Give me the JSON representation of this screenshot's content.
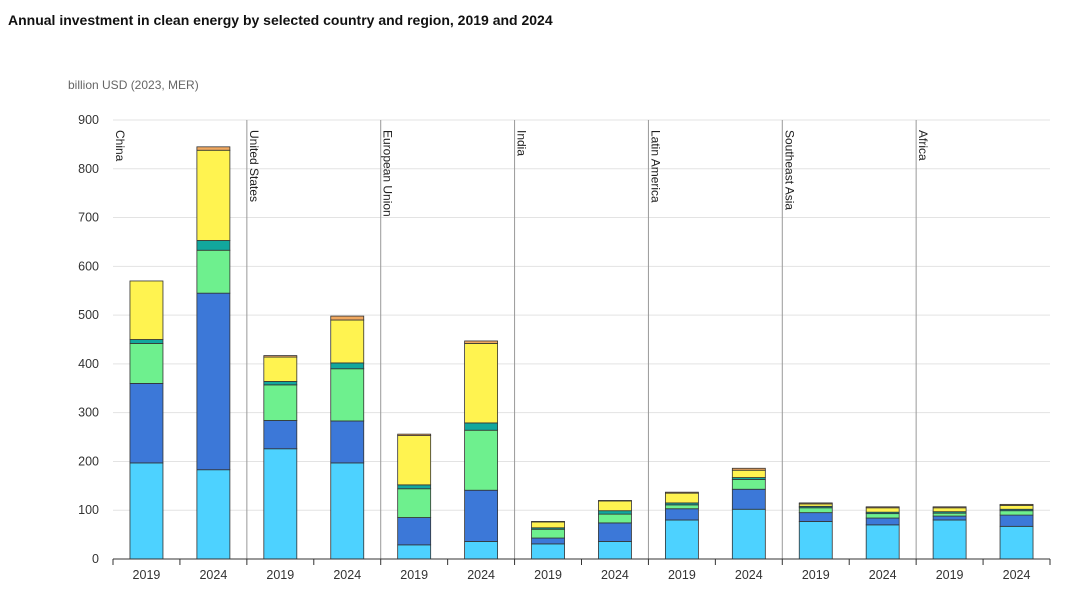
{
  "title": "Annual investment in clean energy by selected country and region, 2019 and 2024",
  "chart_data": {
    "type": "bar",
    "stacked": true,
    "title": "Annual investment in clean energy by selected country and region, 2019 and 2024",
    "ylabel": "billion USD (2023, MER)",
    "ylim": [
      0,
      900
    ],
    "yticks": [
      0,
      100,
      200,
      300,
      400,
      500,
      600,
      700,
      800,
      900
    ],
    "grid": true,
    "colors": [
      "#4dd2ff",
      "#3c78d8",
      "#6ef08e",
      "#12a79d",
      "#fff350",
      "#f0a860"
    ],
    "groups": [
      {
        "region": "China",
        "bars": [
          {
            "year": "2019",
            "values": [
              197,
              163,
              82,
              8,
              120,
              0
            ]
          },
          {
            "year": "2024",
            "values": [
              183,
              362,
              88,
              20,
              185,
              7
            ]
          }
        ]
      },
      {
        "region": "United States",
        "bars": [
          {
            "year": "2019",
            "values": [
              226,
              58,
              73,
              7,
              50,
              3
            ]
          },
          {
            "year": "2024",
            "values": [
              197,
              86,
              107,
              12,
              88,
              8
            ]
          }
        ]
      },
      {
        "region": "European Union",
        "bars": [
          {
            "year": "2019",
            "values": [
              29,
              56,
              59,
              8,
              101,
              3
            ]
          },
          {
            "year": "2024",
            "values": [
              36,
              105,
              123,
              15,
              163,
              5
            ]
          }
        ]
      },
      {
        "region": "India",
        "bars": [
          {
            "year": "2019",
            "values": [
              31,
              12,
              18,
              3,
              12,
              1
            ]
          },
          {
            "year": "2024",
            "values": [
              36,
              38,
              18,
              7,
              20,
              1
            ]
          }
        ]
      },
      {
        "region": "Latin America",
        "bars": [
          {
            "year": "2019",
            "values": [
              80,
              23,
              8,
              4,
              20,
              2
            ]
          },
          {
            "year": "2024",
            "values": [
              102,
              41,
              20,
              4,
              15,
              4
            ]
          }
        ]
      },
      {
        "region": "Southeast Asia",
        "bars": [
          {
            "year": "2019",
            "values": [
              77,
              18,
              10,
              3,
              5,
              2
            ]
          },
          {
            "year": "2024",
            "values": [
              70,
              14,
              9,
              3,
              9,
              2
            ]
          }
        ]
      },
      {
        "region": "Africa",
        "bars": [
          {
            "year": "2019",
            "values": [
              80,
              8,
              6,
              3,
              8,
              2
            ]
          },
          {
            "year": "2024",
            "values": [
              67,
              23,
              9,
              3,
              8,
              2
            ]
          }
        ]
      }
    ]
  }
}
